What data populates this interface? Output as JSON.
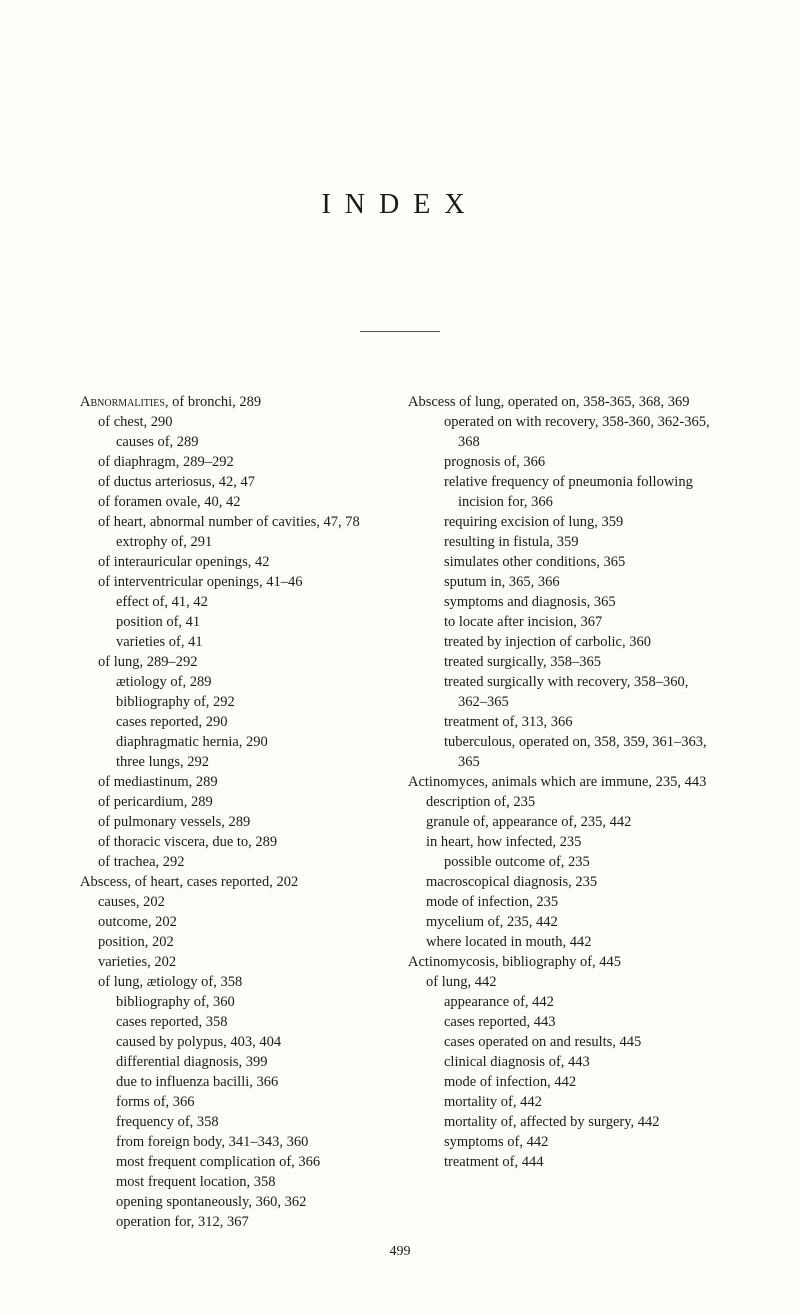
{
  "title": "INDEX",
  "pageNumber": "499",
  "leftColumn": [
    {
      "level": 0,
      "text": "Abnormalities, of bronchi, 289",
      "smallcaps": true
    },
    {
      "level": 1,
      "text": "of chest, 290"
    },
    {
      "level": 2,
      "text": "causes of, 289"
    },
    {
      "level": 1,
      "text": "of diaphragm, 289–292"
    },
    {
      "level": 1,
      "text": "of ductus arteriosus, 42, 47"
    },
    {
      "level": 1,
      "text": "of foramen ovale, 40, 42"
    },
    {
      "level": 1,
      "text": "of heart, abnormal number of cavities, 47, 78"
    },
    {
      "level": 2,
      "text": "extrophy of, 291"
    },
    {
      "level": 1,
      "text": "of interauricular openings, 42"
    },
    {
      "level": 1,
      "text": "of interventricular openings, 41–46"
    },
    {
      "level": 2,
      "text": "effect of, 41, 42"
    },
    {
      "level": 2,
      "text": "position of, 41"
    },
    {
      "level": 2,
      "text": "varieties of, 41"
    },
    {
      "level": 1,
      "text": "of lung, 289–292"
    },
    {
      "level": 2,
      "text": "ætiology of, 289"
    },
    {
      "level": 2,
      "text": "bibliography of, 292"
    },
    {
      "level": 2,
      "text": "cases reported, 290"
    },
    {
      "level": 2,
      "text": "diaphragmatic hernia, 290"
    },
    {
      "level": 2,
      "text": "three lungs, 292"
    },
    {
      "level": 1,
      "text": "of mediastinum, 289"
    },
    {
      "level": 1,
      "text": "of pericardium, 289"
    },
    {
      "level": 1,
      "text": "of pulmonary vessels, 289"
    },
    {
      "level": 1,
      "text": "of thoracic viscera, due to, 289"
    },
    {
      "level": 1,
      "text": "of trachea, 292"
    },
    {
      "level": 0,
      "text": "Abscess, of heart, cases reported, 202"
    },
    {
      "level": 1,
      "text": "causes, 202"
    },
    {
      "level": 1,
      "text": "outcome, 202"
    },
    {
      "level": 1,
      "text": "position, 202"
    },
    {
      "level": 1,
      "text": "varieties, 202"
    },
    {
      "level": 1,
      "text": "of lung, ætiology of, 358"
    },
    {
      "level": 2,
      "text": "bibliography of, 360"
    },
    {
      "level": 2,
      "text": "cases reported, 358"
    },
    {
      "level": 2,
      "text": "caused by polypus, 403, 404"
    },
    {
      "level": 2,
      "text": "differential diagnosis, 399"
    },
    {
      "level": 2,
      "text": "due to influenza bacilli, 366"
    },
    {
      "level": 2,
      "text": "forms of, 366"
    },
    {
      "level": 2,
      "text": "frequency of, 358"
    },
    {
      "level": 2,
      "text": "from foreign body, 341–343, 360"
    },
    {
      "level": 2,
      "text": "most frequent complication of, 366"
    },
    {
      "level": 2,
      "text": "most frequent location, 358"
    },
    {
      "level": 2,
      "text": "opening spontaneously, 360, 362"
    },
    {
      "level": 2,
      "text": "operation for, 312, 367"
    }
  ],
  "rightColumn": [
    {
      "level": 0,
      "text": "Abscess of lung, operated on, 358-365, 368, 369"
    },
    {
      "level": 2,
      "text": "operated on with recovery, 358-360, 362-365, 368"
    },
    {
      "level": 2,
      "text": "prognosis of, 366"
    },
    {
      "level": 2,
      "text": "relative frequency of pneumonia following incision for, 366"
    },
    {
      "level": 2,
      "text": "requiring excision of lung, 359"
    },
    {
      "level": 2,
      "text": "resulting in fistula, 359"
    },
    {
      "level": 2,
      "text": "simulates other conditions, 365"
    },
    {
      "level": 2,
      "text": "sputum in, 365, 366"
    },
    {
      "level": 2,
      "text": "symptoms and diagnosis, 365"
    },
    {
      "level": 2,
      "text": "to locate after incision, 367"
    },
    {
      "level": 2,
      "text": "treated by injection of carbolic, 360"
    },
    {
      "level": 2,
      "text": "treated surgically, 358–365"
    },
    {
      "level": 2,
      "text": "treated surgically with recovery, 358–360, 362–365"
    },
    {
      "level": 2,
      "text": "treatment of, 313, 366"
    },
    {
      "level": 2,
      "text": "tuberculous, operated on, 358, 359, 361–363, 365"
    },
    {
      "level": 0,
      "text": "Actinomyces, animals which are immune, 235, 443"
    },
    {
      "level": 1,
      "text": "description of, 235"
    },
    {
      "level": 1,
      "text": "granule of, appearance of, 235, 442"
    },
    {
      "level": 1,
      "text": "in heart, how infected, 235"
    },
    {
      "level": 2,
      "text": "possible outcome of, 235"
    },
    {
      "level": 1,
      "text": "macroscopical diagnosis, 235"
    },
    {
      "level": 1,
      "text": "mode of infection, 235"
    },
    {
      "level": 1,
      "text": "mycelium of, 235, 442"
    },
    {
      "level": 1,
      "text": "where located in mouth, 442"
    },
    {
      "level": 0,
      "text": "Actinomycosis, bibliography of, 445"
    },
    {
      "level": 1,
      "text": "of lung, 442"
    },
    {
      "level": 2,
      "text": "appearance of, 442"
    },
    {
      "level": 2,
      "text": "cases reported, 443"
    },
    {
      "level": 2,
      "text": "cases operated on and results, 445"
    },
    {
      "level": 2,
      "text": "clinical diagnosis of, 443"
    },
    {
      "level": 2,
      "text": "mode of infection, 442"
    },
    {
      "level": 2,
      "text": "mortality of, 442"
    },
    {
      "level": 2,
      "text": "mortality of, affected by surgery, 442"
    },
    {
      "level": 2,
      "text": "symptoms of, 442"
    },
    {
      "level": 2,
      "text": "treatment of, 444"
    }
  ]
}
